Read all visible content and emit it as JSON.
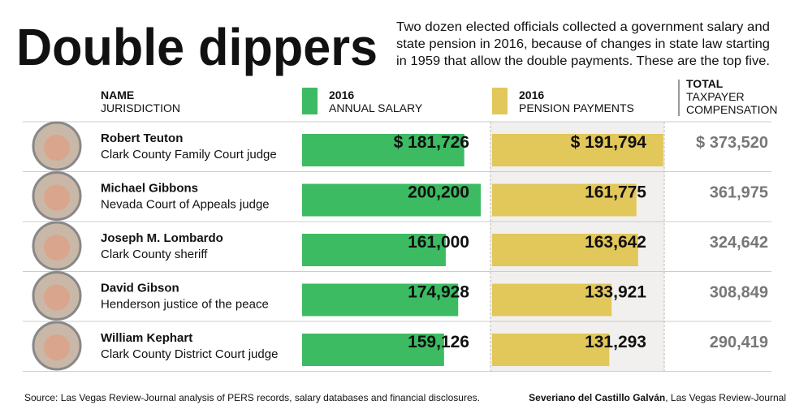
{
  "chart_data": {
    "type": "bar",
    "title": "Double dippers",
    "subtitle": [
      "Two dozen elected officials collected a government salary and",
      "state pension in 2016, because of changes in state law starting",
      "in 1959 that allow the double payments. These are the top five."
    ],
    "name_header": "NAME",
    "jurisdiction_header": "JURISDICTION",
    "categories": [
      "Robert Teuton",
      "Michael Gibbons",
      "Joseph M. Lombardo",
      "David Gibson",
      "William Kephart"
    ],
    "jurisdictions": [
      "Clark County Family Court judge",
      "Nevada Court of Appeals judge",
      "Clark County sheriff",
      "Henderson justice of the peace",
      "Clark County District Court judge"
    ],
    "series": [
      {
        "year": "2016",
        "name": "ANNUAL SALARY",
        "color": "#3dbb62",
        "values": [
          181726,
          200200,
          161000,
          174928,
          159126
        ],
        "value_labels": [
          "$ 181,726",
          "200,200",
          "161,000",
          "174,928",
          "159,126"
        ]
      },
      {
        "year": "2016",
        "name": "PENSION PAYMENTS",
        "color": "#e2c75a",
        "values": [
          191794,
          161775,
          163642,
          133921,
          131293
        ],
        "value_labels": [
          "$ 191,794",
          "161,775",
          "163,642",
          "133,921",
          "131,293"
        ]
      }
    ],
    "totals": {
      "header": [
        "TOTAL",
        "TAXPAYER",
        "COMPENSATION"
      ],
      "values": [
        373520,
        361975,
        324642,
        308849,
        290419
      ],
      "value_labels": [
        "$ 373,520",
        "361,975",
        "324,642",
        "308,849",
        "290,419"
      ]
    },
    "source": "Source: Las Vegas Review-Journal analysis of PERS records, salary databases and financial disclosures.",
    "credit_name": "Severiano del Castillo Galván",
    "credit_org": ", Las Vegas Review-Journal"
  }
}
